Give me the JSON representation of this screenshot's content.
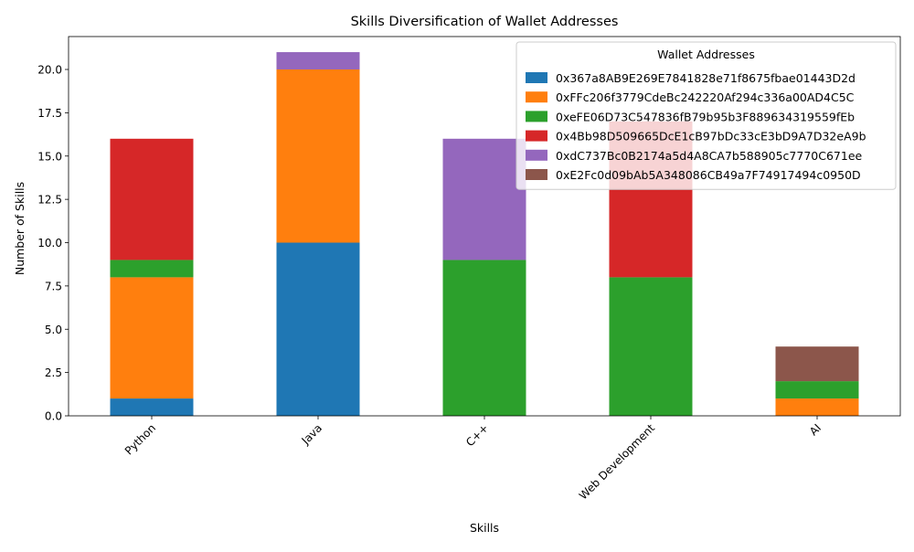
{
  "chart_data": {
    "type": "bar",
    "stacked": true,
    "title": "Skills Diversification of Wallet Addresses",
    "xlabel": "Skills",
    "ylabel": "Number of Skills",
    "categories": [
      "Python",
      "Java",
      "C++",
      "Web Development",
      "AI"
    ],
    "ylim": [
      0,
      21.9
    ],
    "yticks": [
      "0.0",
      "2.5",
      "5.0",
      "7.5",
      "10.0",
      "12.5",
      "15.0",
      "17.5",
      "20.0"
    ],
    "grid": false,
    "legend": {
      "title": "Wallet Addresses",
      "placement": "top-right"
    },
    "series": [
      {
        "name": "0x367a8AB9E269E7841828e71f8675fbae01443D2d",
        "color": "#1f77b4",
        "values": [
          1,
          10,
          0,
          0,
          0
        ]
      },
      {
        "name": "0xFFc206f3779CdeBc242220Af294c336a00AD4C5C",
        "color": "#ff7f0e",
        "values": [
          7,
          10,
          0,
          0,
          1
        ]
      },
      {
        "name": "0xeFE06D73C547836fB79b95b3F889634319559fEb",
        "color": "#2ca02c",
        "values": [
          1,
          0,
          9,
          8,
          1
        ]
      },
      {
        "name": "0x4Bb98D509665DcE1cB97bDc33cE3bD9A7D32eA9b",
        "color": "#d62728",
        "values": [
          7,
          0,
          0,
          9,
          0
        ]
      },
      {
        "name": "0xdC737Bc0B2174a5d4A8CA7b588905c7770C671ee",
        "color": "#9467bd",
        "values": [
          0,
          1,
          7,
          0,
          0
        ]
      },
      {
        "name": "0xE2Fc0d09bAb5A348086CB49a7F74917494c0950D",
        "color": "#8c564b",
        "values": [
          0,
          0,
          0,
          0,
          2
        ]
      }
    ]
  }
}
